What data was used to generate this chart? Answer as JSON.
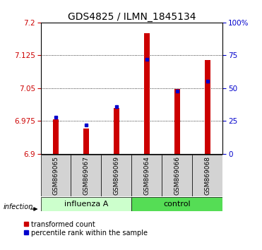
{
  "title": "GDS4825 / ILMN_1845134",
  "samples": [
    "GSM869065",
    "GSM869067",
    "GSM869069",
    "GSM869064",
    "GSM869066",
    "GSM869068"
  ],
  "ylim_left": [
    6.9,
    7.2
  ],
  "ylim_right": [
    0,
    100
  ],
  "yticks_left": [
    6.9,
    6.975,
    7.05,
    7.125,
    7.2
  ],
  "yticks_right": [
    0,
    25,
    50,
    75,
    100
  ],
  "ytick_labels_left": [
    "6.9",
    "6.975",
    "7.05",
    "7.125",
    "7.2"
  ],
  "ytick_labels_right": [
    "0",
    "25",
    "50",
    "75",
    "100%"
  ],
  "transformed_counts": [
    6.978,
    6.957,
    7.004,
    7.175,
    7.048,
    7.115
  ],
  "percentile_ranks": [
    28,
    22,
    36,
    72,
    48,
    55
  ],
  "bar_color": "#cc0000",
  "dot_color": "#0000cc",
  "bar_bottom": 6.9,
  "influenza_color": "#ccffcc",
  "control_color": "#55dd55",
  "sample_box_color": "#d3d3d3",
  "legend_red_label": "transformed count",
  "legend_blue_label": "percentile rank within the sample",
  "infection_label": "infection",
  "title_fontsize": 10,
  "tick_fontsize": 7.5,
  "sample_fontsize": 6.5,
  "group_fontsize": 8,
  "legend_fontsize": 7
}
